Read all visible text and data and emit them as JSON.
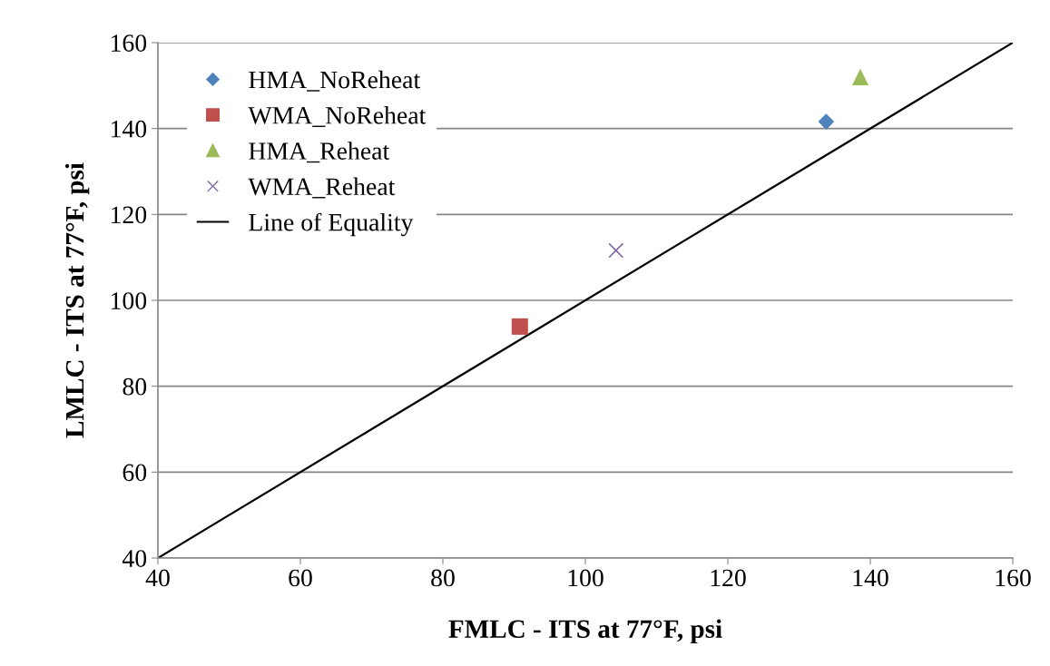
{
  "chart_data": {
    "type": "scatter",
    "xlabel": "FMLC - ITS at 77°F, psi",
    "ylabel": "LMLC - ITS at 77°F, psi",
    "xlim": [
      40,
      160
    ],
    "xticks": [
      40,
      60,
      80,
      100,
      120,
      140,
      160
    ],
    "ylim": [
      40,
      160
    ],
    "yticks": [
      40,
      60,
      80,
      100,
      120,
      140,
      160
    ],
    "grid": "y",
    "legend": "top left",
    "series": [
      {
        "name": "HMA_NoReheat",
        "color": "#4f81bd",
        "marker": "diamond",
        "x": [
          133.8
        ],
        "values": [
          141.6
        ]
      },
      {
        "name": "WMA_NoReheat",
        "color": "#c0504d",
        "marker": "square",
        "x": [
          90.8
        ],
        "values": [
          93.9
        ]
      },
      {
        "name": "HMA_Reheat",
        "color": "#9bbb59",
        "marker": "triangle",
        "x": [
          138.6
        ],
        "values": [
          152.0
        ]
      },
      {
        "name": "WMA_Reheat",
        "color": "#8064a2",
        "marker": "cross",
        "x": [
          104.3
        ],
        "values": [
          111.6
        ]
      },
      {
        "name": "Line of Equality",
        "type": "line",
        "color": "#000000",
        "marker": "none",
        "line_style": "solid",
        "x": [
          40,
          160
        ],
        "values": [
          40,
          160
        ]
      }
    ]
  }
}
